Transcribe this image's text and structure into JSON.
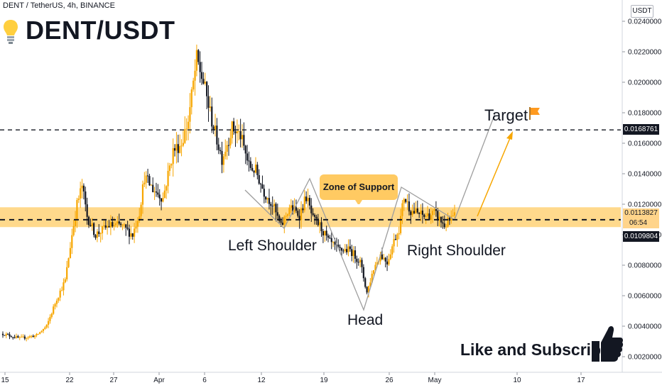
{
  "header": {
    "symbol_line": "DENT / TetherUS, 4h, BINANCE",
    "title": "DENT/USDT",
    "bulb_icon": "lightbulb-icon"
  },
  "axis": {
    "currency": "USDT",
    "y_ticks": [
      "0.0240000",
      "0.0220000",
      "0.0200000",
      "0.0180000",
      "0.0160000",
      "0.0140000",
      "0.0120000",
      "0.0100000",
      "0.0080000",
      "0.0060000",
      "0.0040000",
      "0.0020000"
    ],
    "x_ticks": [
      "15",
      "22",
      "27",
      "Apr",
      "6",
      "12",
      "19",
      "26",
      "May",
      "10",
      "17"
    ]
  },
  "price_tags": {
    "target_level": "0.0168761",
    "current_price": "0.0113827",
    "countdown": "06:54",
    "support_level": "0.0109804"
  },
  "annotations": {
    "zone_label": "Zone of Support",
    "left_shoulder": "Left Shoulder",
    "head": "Head",
    "right_shoulder": "Right Shoulder",
    "target": "Target",
    "subscribe": "Like and Subscribe"
  },
  "colors": {
    "bull": "#f7a600",
    "bear": "#131722",
    "zone_fill": "#ffcc66",
    "zone_label_bg": "#ffca62",
    "dashed": "#131722",
    "pattern_line": "#9e9e9e",
    "projection": "#f7a600",
    "current_price_bg": "#ffd48a"
  },
  "chart_data": {
    "type": "candlestick",
    "interval": "4h",
    "exchange": "BINANCE",
    "ylim": [
      0.0015,
      0.0245
    ],
    "y_ticks": [
      0.002,
      0.004,
      0.006,
      0.008,
      0.01,
      0.012,
      0.014,
      0.016,
      0.018,
      0.02,
      0.022,
      0.024
    ],
    "x_tick_labels": [
      "15",
      "22",
      "27",
      "Apr",
      "6",
      "12",
      "19",
      "26",
      "May",
      "10",
      "17"
    ],
    "levels": {
      "target": 0.0168761,
      "support": 0.0109804,
      "current": 0.0113827
    },
    "support_zone": [
      0.0105,
      0.0118
    ],
    "price_path": [
      {
        "i": 0,
        "p": 0.0035
      },
      {
        "i": 10,
        "p": 0.0032
      },
      {
        "i": 20,
        "p": 0.0034
      },
      {
        "i": 26,
        "p": 0.004
      },
      {
        "i": 32,
        "p": 0.0058
      },
      {
        "i": 37,
        "p": 0.007
      },
      {
        "i": 41,
        "p": 0.01
      },
      {
        "i": 44,
        "p": 0.012
      },
      {
        "i": 47,
        "p": 0.0132
      },
      {
        "i": 50,
        "p": 0.0112
      },
      {
        "i": 55,
        "p": 0.01
      },
      {
        "i": 63,
        "p": 0.0106
      },
      {
        "i": 70,
        "p": 0.0106
      },
      {
        "i": 77,
        "p": 0.01
      },
      {
        "i": 81,
        "p": 0.0115
      },
      {
        "i": 84,
        "p": 0.0138
      },
      {
        "i": 89,
        "p": 0.013
      },
      {
        "i": 95,
        "p": 0.0124
      },
      {
        "i": 101,
        "p": 0.0155
      },
      {
        "i": 106,
        "p": 0.016
      },
      {
        "i": 110,
        "p": 0.0175
      },
      {
        "i": 115,
        "p": 0.0215
      },
      {
        "i": 119,
        "p": 0.02
      },
      {
        "i": 124,
        "p": 0.0175
      },
      {
        "i": 130,
        "p": 0.015
      },
      {
        "i": 136,
        "p": 0.017
      },
      {
        "i": 141,
        "p": 0.0165
      },
      {
        "i": 146,
        "p": 0.0145
      },
      {
        "i": 150,
        "p": 0.0142
      },
      {
        "i": 155,
        "p": 0.0128
      },
      {
        "i": 160,
        "p": 0.012
      },
      {
        "i": 165,
        "p": 0.0105
      },
      {
        "i": 170,
        "p": 0.0118
      },
      {
        "i": 176,
        "p": 0.0113
      },
      {
        "i": 180,
        "p": 0.0125
      },
      {
        "i": 184,
        "p": 0.011
      },
      {
        "i": 188,
        "p": 0.0106
      },
      {
        "i": 193,
        "p": 0.0096
      },
      {
        "i": 199,
        "p": 0.009
      },
      {
        "i": 206,
        "p": 0.009
      },
      {
        "i": 212,
        "p": 0.0082
      },
      {
        "i": 216,
        "p": 0.0062
      },
      {
        "i": 220,
        "p": 0.0078
      },
      {
        "i": 224,
        "p": 0.0087
      },
      {
        "i": 228,
        "p": 0.0082
      },
      {
        "i": 232,
        "p": 0.0096
      },
      {
        "i": 235,
        "p": 0.0104
      },
      {
        "i": 238,
        "p": 0.0125
      },
      {
        "i": 242,
        "p": 0.0116
      },
      {
        "i": 250,
        "p": 0.0112
      },
      {
        "i": 256,
        "p": 0.0114
      },
      {
        "i": 262,
        "p": 0.0106
      },
      {
        "i": 268,
        "p": 0.0112
      }
    ]
  }
}
